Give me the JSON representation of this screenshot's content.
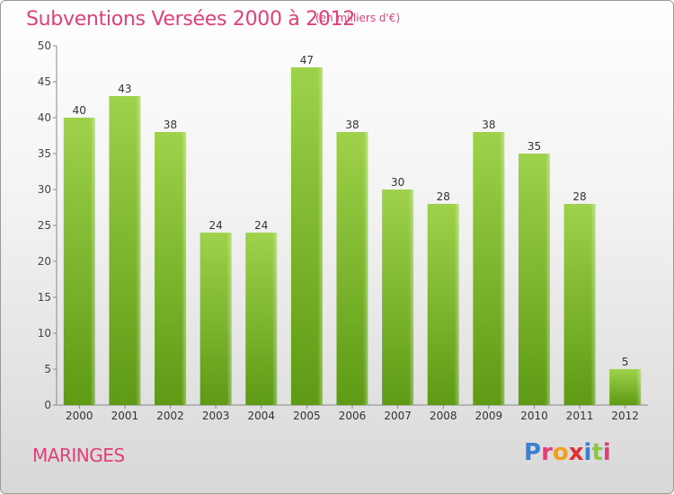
{
  "header": {
    "title": "Subventions Versées 2000 à 2012",
    "subtitle": "(en milliers d'€)"
  },
  "footer": {
    "commune": "MARINGES",
    "logo_text": "Proxiti"
  },
  "colors": {
    "title": "#e0407a",
    "bar_top": "#9ed24a",
    "bar_bottom": "#5e9a14",
    "logo_letters": [
      "#3a7fd0",
      "#e0407a",
      "#f0a020",
      "#e03030",
      "#3a7fd0",
      "#8dc63f",
      "#e0407a"
    ]
  },
  "chart_data": {
    "type": "bar",
    "categories": [
      "2000",
      "2001",
      "2002",
      "2003",
      "2004",
      "2005",
      "2006",
      "2007",
      "2008",
      "2009",
      "2010",
      "2011",
      "2012"
    ],
    "values": [
      40,
      43,
      38,
      24,
      24,
      47,
      38,
      30,
      28,
      38,
      35,
      28,
      5
    ],
    "title": "Subventions Versées 2000 à 2012",
    "subtitle": "(en milliers d'€)",
    "ylim": [
      0,
      50
    ],
    "yticks": [
      0,
      5,
      10,
      15,
      20,
      25,
      30,
      35,
      40,
      45,
      50
    ],
    "grid": false,
    "data_labels": true
  }
}
